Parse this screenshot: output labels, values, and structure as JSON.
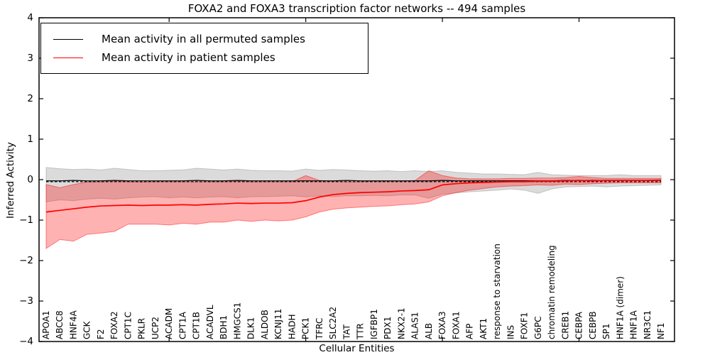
{
  "title": "FOXA2 and FOXA3 transcription factor networks -- 494 samples",
  "axes": {
    "ylabel": "Inferred Activity",
    "xlabel": "Cellular Entities",
    "ylim": [
      -4,
      4
    ],
    "ytick_labels": [
      "4",
      "3",
      "2",
      "1",
      "0",
      "−1",
      "−2",
      "−3",
      "−4"
    ],
    "ytick_values": [
      4,
      3,
      2,
      1,
      0,
      -1,
      -2,
      -3,
      -4
    ],
    "xtick_entity_indices": [
      9,
      19,
      29,
      39
    ]
  },
  "legend": {
    "items": [
      {
        "label": "Mean activity in all permuted samples",
        "color": "#000000"
      },
      {
        "label": "Mean activity in patient samples",
        "color": "#ff0000"
      }
    ]
  },
  "colors": {
    "permuted_line": "#000000",
    "patient_line": "#ff0000",
    "permuted_band": "#999999",
    "patient_band": "#ff0000",
    "frame": "#000000"
  },
  "chart_data": {
    "type": "line",
    "title": "FOXA2 and FOXA3 transcription factor networks -- 494 samples",
    "xlabel": "Cellular Entities",
    "ylabel": "Inferred Activity",
    "ylim": [
      -4,
      4
    ],
    "grid": false,
    "legend_position": "upper left",
    "categories": [
      "APOA1",
      "ABCC8",
      "HNF4A",
      "GCK",
      "F2",
      "FOXA2",
      "CPT1C",
      "PKLR",
      "UCP2",
      "ACADM",
      "CPT1A",
      "CPT1B",
      "ACADVL",
      "BDH1",
      "HMGCS1",
      "DLK1",
      "ALDOB",
      "KCNJ11",
      "HADH",
      "PCK1",
      "TFRC",
      "SLC2A2",
      "TAT",
      "TTR",
      "IGFBP1",
      "PDX1",
      "NKX2-1",
      "ALAS1",
      "ALB",
      "FOXA3",
      "FOXA1",
      "AFP",
      "AKT1",
      "response to starvation",
      "INS",
      "FOXF1",
      "G6PC",
      "chromatin remodeling",
      "CREB1",
      "CEBPA",
      "CEBPB",
      "SP1",
      "HNF1A (dimer)",
      "HNF1A",
      "NR3C1",
      "NF1"
    ],
    "series": [
      {
        "name": "Mean activity in all permuted samples",
        "color": "#000000",
        "values": [
          -0.03,
          -0.03,
          -0.02,
          -0.03,
          -0.03,
          -0.02,
          -0.03,
          -0.03,
          -0.03,
          -0.03,
          -0.03,
          -0.02,
          -0.03,
          -0.03,
          -0.02,
          -0.03,
          -0.03,
          -0.03,
          -0.03,
          -0.03,
          -0.03,
          -0.03,
          -0.02,
          -0.03,
          -0.03,
          -0.03,
          -0.03,
          -0.03,
          -0.03,
          -0.02,
          -0.03,
          -0.03,
          -0.03,
          -0.03,
          -0.03,
          -0.03,
          -0.03,
          -0.03,
          -0.02,
          -0.02,
          -0.02,
          -0.02,
          -0.02,
          -0.02,
          -0.02,
          -0.02
        ]
      },
      {
        "name": "Mean activity in patient samples",
        "color": "#ff0000",
        "values": [
          -0.8,
          -0.76,
          -0.72,
          -0.68,
          -0.65,
          -0.64,
          -0.63,
          -0.64,
          -0.63,
          -0.63,
          -0.62,
          -0.63,
          -0.61,
          -0.6,
          -0.58,
          -0.59,
          -0.58,
          -0.58,
          -0.57,
          -0.52,
          -0.43,
          -0.37,
          -0.34,
          -0.32,
          -0.31,
          -0.3,
          -0.28,
          -0.27,
          -0.25,
          -0.13,
          -0.1,
          -0.08,
          -0.07,
          -0.06,
          -0.05,
          -0.05,
          -0.04,
          -0.04,
          -0.03,
          -0.02,
          -0.03,
          -0.02,
          -0.02,
          -0.02,
          -0.02,
          -0.01
        ]
      }
    ],
    "bands": [
      {
        "name": "permuted samples spread",
        "color": "#999999",
        "opacity": 0.35,
        "upper": [
          0.3,
          0.27,
          0.25,
          0.26,
          0.24,
          0.28,
          0.25,
          0.22,
          0.22,
          0.23,
          0.24,
          0.28,
          0.26,
          0.24,
          0.26,
          0.23,
          0.22,
          0.22,
          0.21,
          0.26,
          0.23,
          0.25,
          0.24,
          0.22,
          0.21,
          0.22,
          0.2,
          0.22,
          0.2,
          0.22,
          0.18,
          0.16,
          0.14,
          0.14,
          0.13,
          0.12,
          0.18,
          0.12,
          0.11,
          0.1,
          0.1,
          0.1,
          0.12,
          0.1,
          0.1,
          0.1
        ],
        "lower": [
          -0.55,
          -0.5,
          -0.52,
          -0.48,
          -0.46,
          -0.48,
          -0.45,
          -0.43,
          -0.42,
          -0.45,
          -0.43,
          -0.45,
          -0.43,
          -0.42,
          -0.45,
          -0.42,
          -0.42,
          -0.41,
          -0.4,
          -0.43,
          -0.4,
          -0.42,
          -0.4,
          -0.4,
          -0.39,
          -0.4,
          -0.38,
          -0.38,
          -0.46,
          -0.36,
          -0.33,
          -0.3,
          -0.28,
          -0.26,
          -0.23,
          -0.26,
          -0.34,
          -0.23,
          -0.18,
          -0.17,
          -0.16,
          -0.18,
          -0.16,
          -0.15,
          -0.14,
          -0.13
        ]
      },
      {
        "name": "patient samples spread",
        "color": "#ff0000",
        "opacity": 0.3,
        "upper": [
          -0.12,
          -0.2,
          -0.12,
          -0.06,
          -0.05,
          -0.04,
          -0.05,
          -0.06,
          -0.05,
          -0.05,
          -0.05,
          -0.05,
          -0.05,
          -0.05,
          -0.04,
          -0.05,
          -0.05,
          -0.05,
          -0.05,
          0.1,
          -0.02,
          -0.04,
          -0.05,
          -0.05,
          -0.04,
          -0.04,
          -0.04,
          -0.02,
          0.22,
          0.1,
          0.04,
          0.02,
          0.02,
          0.02,
          0.03,
          0.03,
          0.04,
          0.04,
          0.05,
          0.08,
          0.05,
          0.03,
          0.03,
          0.03,
          0.03,
          0.03
        ],
        "lower": [
          -1.7,
          -1.48,
          -1.52,
          -1.35,
          -1.32,
          -1.28,
          -1.1,
          -1.1,
          -1.1,
          -1.12,
          -1.08,
          -1.1,
          -1.05,
          -1.05,
          -1.0,
          -1.03,
          -1.0,
          -1.02,
          -1.0,
          -0.92,
          -0.8,
          -0.73,
          -0.7,
          -0.68,
          -0.66,
          -0.65,
          -0.62,
          -0.6,
          -0.55,
          -0.4,
          -0.32,
          -0.26,
          -0.22,
          -0.18,
          -0.16,
          -0.15,
          -0.13,
          -0.14,
          -0.11,
          -0.12,
          -0.1,
          -0.09,
          -0.08,
          -0.08,
          -0.08,
          -0.08
        ]
      }
    ],
    "reference_line": {
      "value": -0.05,
      "style": "dashed",
      "color": "#000000"
    }
  }
}
